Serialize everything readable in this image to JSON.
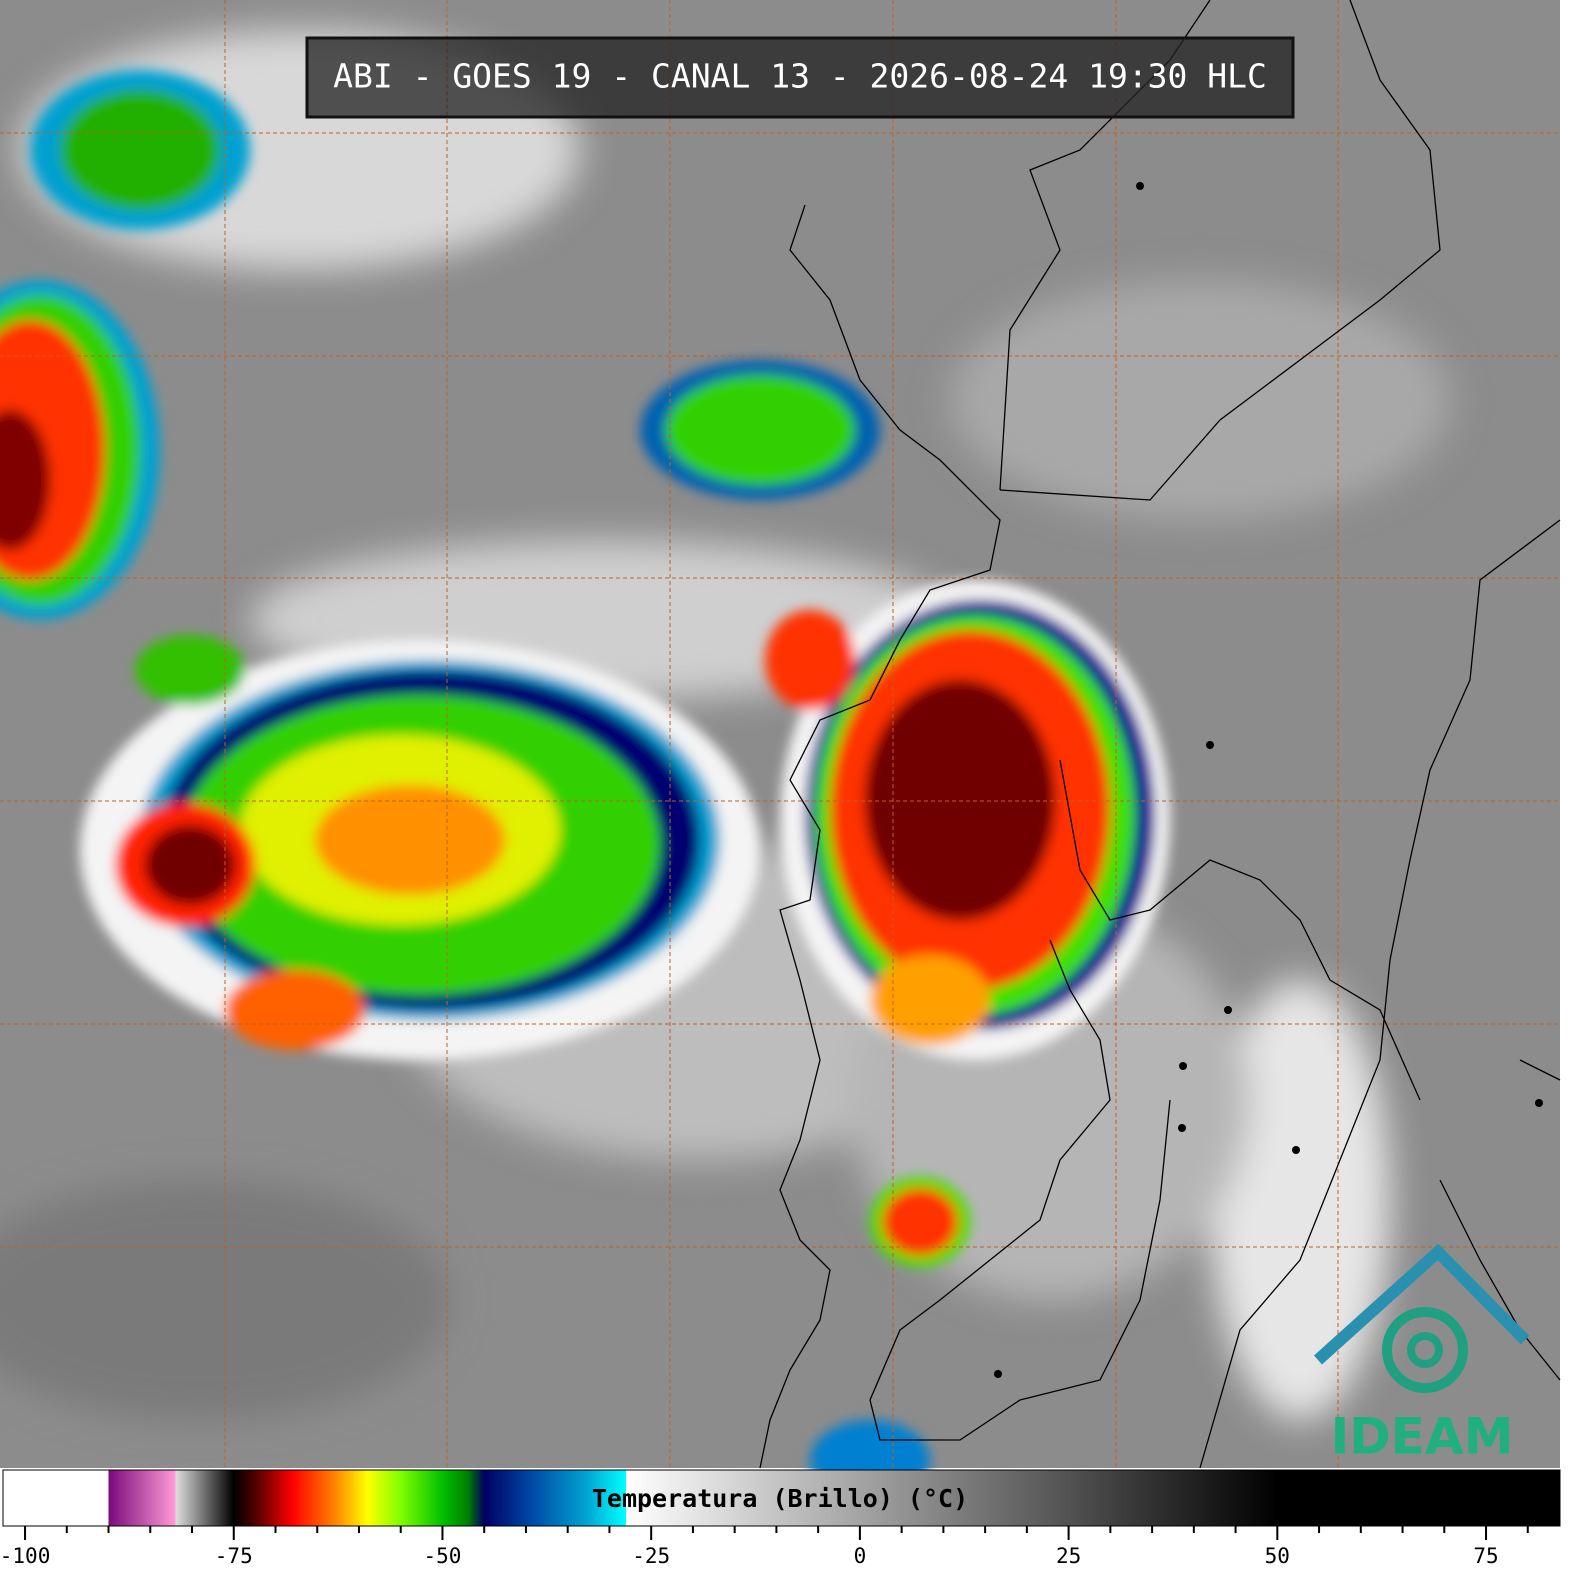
{
  "title": "ABI - GOES 19 - CANAL 13 - 2026-08-24 19:30 HLC",
  "colorbar": {
    "label": "Temperatura (Brillo) (°C)",
    "lim": [
      -102.64,
      83.86
    ],
    "ticks": [
      -100,
      -75,
      -50,
      -25,
      0,
      25,
      50,
      75
    ],
    "minor_ticks": [
      -95,
      -90,
      -85,
      -80,
      -70,
      -65,
      -60,
      -55,
      -45,
      -40,
      -35,
      -30,
      -20,
      -15,
      -10,
      -5,
      5,
      10,
      15,
      20,
      30,
      35,
      40,
      45,
      55,
      60,
      65,
      70,
      80
    ],
    "colormap": [
      {
        "value": -90,
        "color": "#ffffff"
      },
      {
        "value": -90,
        "color": "#7a0a7a"
      },
      {
        "value": -82,
        "color": "#ff9ad8"
      },
      {
        "value": -82,
        "color": "#e0e0e0"
      },
      {
        "value": -76,
        "color": "#202020"
      },
      {
        "value": -75,
        "color": "#000000"
      },
      {
        "value": -72,
        "color": "#600000"
      },
      {
        "value": -68,
        "color": "#ff0000"
      },
      {
        "value": -63,
        "color": "#ff8000"
      },
      {
        "value": -59,
        "color": "#ffff00"
      },
      {
        "value": -55,
        "color": "#80ff00"
      },
      {
        "value": -50,
        "color": "#00c000"
      },
      {
        "value": -47,
        "color": "#008000"
      },
      {
        "value": -45,
        "color": "#000060"
      },
      {
        "value": -40,
        "color": "#0040a0"
      },
      {
        "value": -33,
        "color": "#00a0d0"
      },
      {
        "value": -28,
        "color": "#00ffff"
      },
      {
        "value": -28,
        "color": "#ffffff"
      },
      {
        "value": 50,
        "color": "#000000"
      }
    ]
  },
  "logo": "IDEAM"
}
